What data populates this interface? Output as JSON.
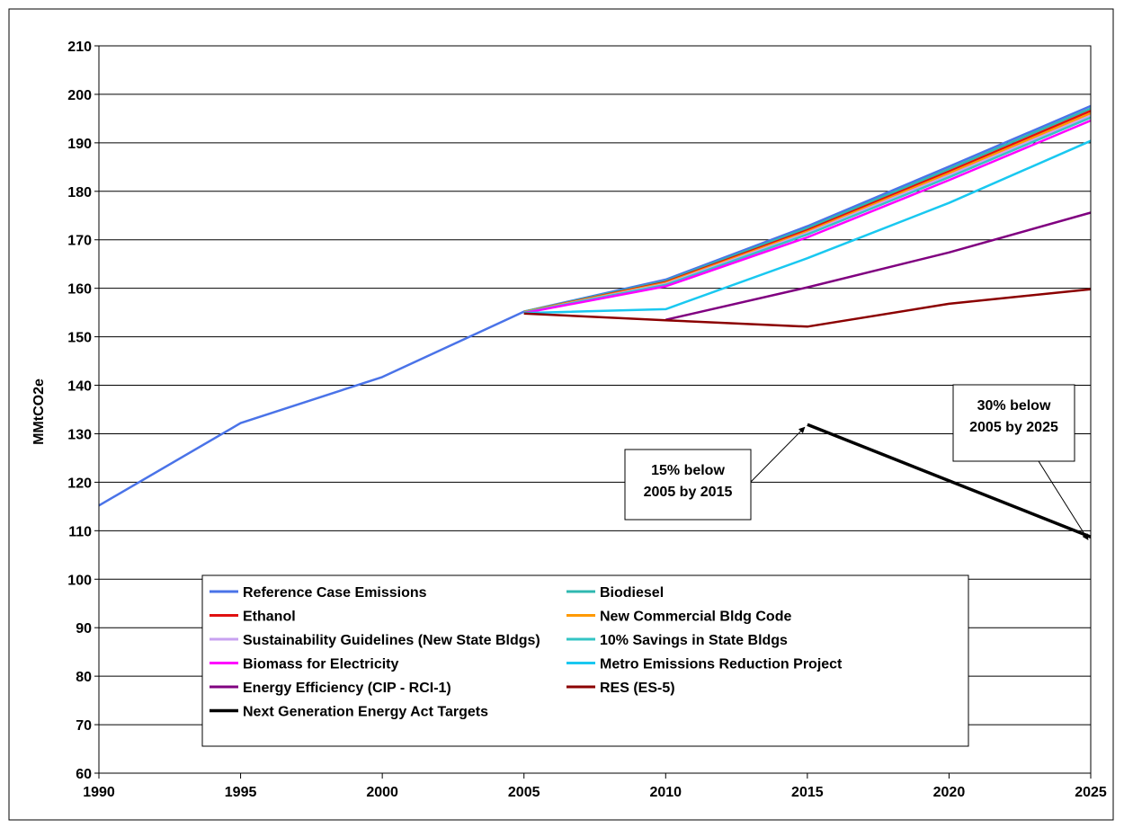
{
  "chart_data": {
    "type": "line",
    "title": "",
    "xlabel": "",
    "ylabel": "MMtCO2e",
    "xlim": [
      1990,
      2025
    ],
    "ylim": [
      60,
      210
    ],
    "x_ticks": [
      "1990",
      "1995",
      "2000",
      "2005",
      "2010",
      "2015",
      "2020",
      "2025"
    ],
    "y_ticks": [
      "60",
      "70",
      "80",
      "90",
      "100",
      "110",
      "120",
      "130",
      "140",
      "150",
      "160",
      "170",
      "180",
      "190",
      "200",
      "210"
    ],
    "grid": "horizontal",
    "legend_position": "bottom-center",
    "series": [
      {
        "name": "Reference Case Emissions",
        "color": "#4a73e8",
        "x": [
          1990,
          1995,
          2000,
          2005,
          2010,
          2015,
          2020,
          2025
        ],
        "values": [
          115.2,
          132.2,
          141.7,
          155.2,
          161.8,
          172.8,
          185.1,
          197.6
        ]
      },
      {
        "name": "Biodiesel",
        "color": "#2fb8b0",
        "x": [
          2005,
          2010,
          2015,
          2020,
          2025
        ],
        "values": [
          155.2,
          161.5,
          172.4,
          184.6,
          197.1
        ]
      },
      {
        "name": "Ethanol",
        "color": "#e01010",
        "x": [
          2005,
          2010,
          2015,
          2020,
          2025
        ],
        "values": [
          155.1,
          161.3,
          172.0,
          184.1,
          196.6
        ]
      },
      {
        "name": "New Commercial Bldg Code",
        "color": "#ff9900",
        "x": [
          2005,
          2010,
          2015,
          2020,
          2025
        ],
        "values": [
          155.1,
          161.1,
          171.7,
          183.7,
          196.1
        ]
      },
      {
        "name": "Sustainability Guidelines (New State Bldgs)",
        "color": "#c8a2f0",
        "x": [
          2005,
          2010,
          2015,
          2020,
          2025
        ],
        "values": [
          155.0,
          160.9,
          171.4,
          183.3,
          195.6
        ]
      },
      {
        "name": "10% Savings in State Bldgs",
        "color": "#33c4c4",
        "x": [
          2005,
          2010,
          2015,
          2020,
          2025
        ],
        "values": [
          155.0,
          160.7,
          171.1,
          182.9,
          195.2
        ]
      },
      {
        "name": "Biomass for Electricity",
        "color": "#ff00ff",
        "x": [
          2005,
          2010,
          2015,
          2020,
          2025
        ],
        "values": [
          154.9,
          160.4,
          170.5,
          182.3,
          194.6
        ]
      },
      {
        "name": "Metro Emissions Reduction Project",
        "color": "#19c8f0",
        "x": [
          2005,
          2010,
          2015,
          2020,
          2025
        ],
        "values": [
          154.9,
          155.7,
          166.2,
          177.6,
          190.4
        ]
      },
      {
        "name": "Energy Efficiency (CIP - RCI-1)",
        "color": "#800080",
        "x": [
          2010,
          2015,
          2020,
          2025
        ],
        "values": [
          153.5,
          160.2,
          167.4,
          175.6
        ]
      },
      {
        "name": "RES (ES-5)",
        "color": "#8b0000",
        "x": [
          2005,
          2010,
          2015,
          2020,
          2025
        ],
        "values": [
          154.8,
          153.4,
          152.1,
          156.8,
          159.8
        ]
      },
      {
        "name": "Next Generation Energy Act Targets",
        "color": "#000000",
        "x": [
          2015,
          2025
        ],
        "values": [
          131.9,
          108.7
        ]
      }
    ],
    "annotations": [
      {
        "lines": [
          "15% below",
          "2005 by 2015"
        ],
        "target": {
          "x": 2015,
          "y": 131.9
        }
      },
      {
        "lines": [
          "30% below",
          "2005 by 2025"
        ],
        "target": {
          "x": 2025,
          "y": 108.7
        }
      }
    ]
  }
}
